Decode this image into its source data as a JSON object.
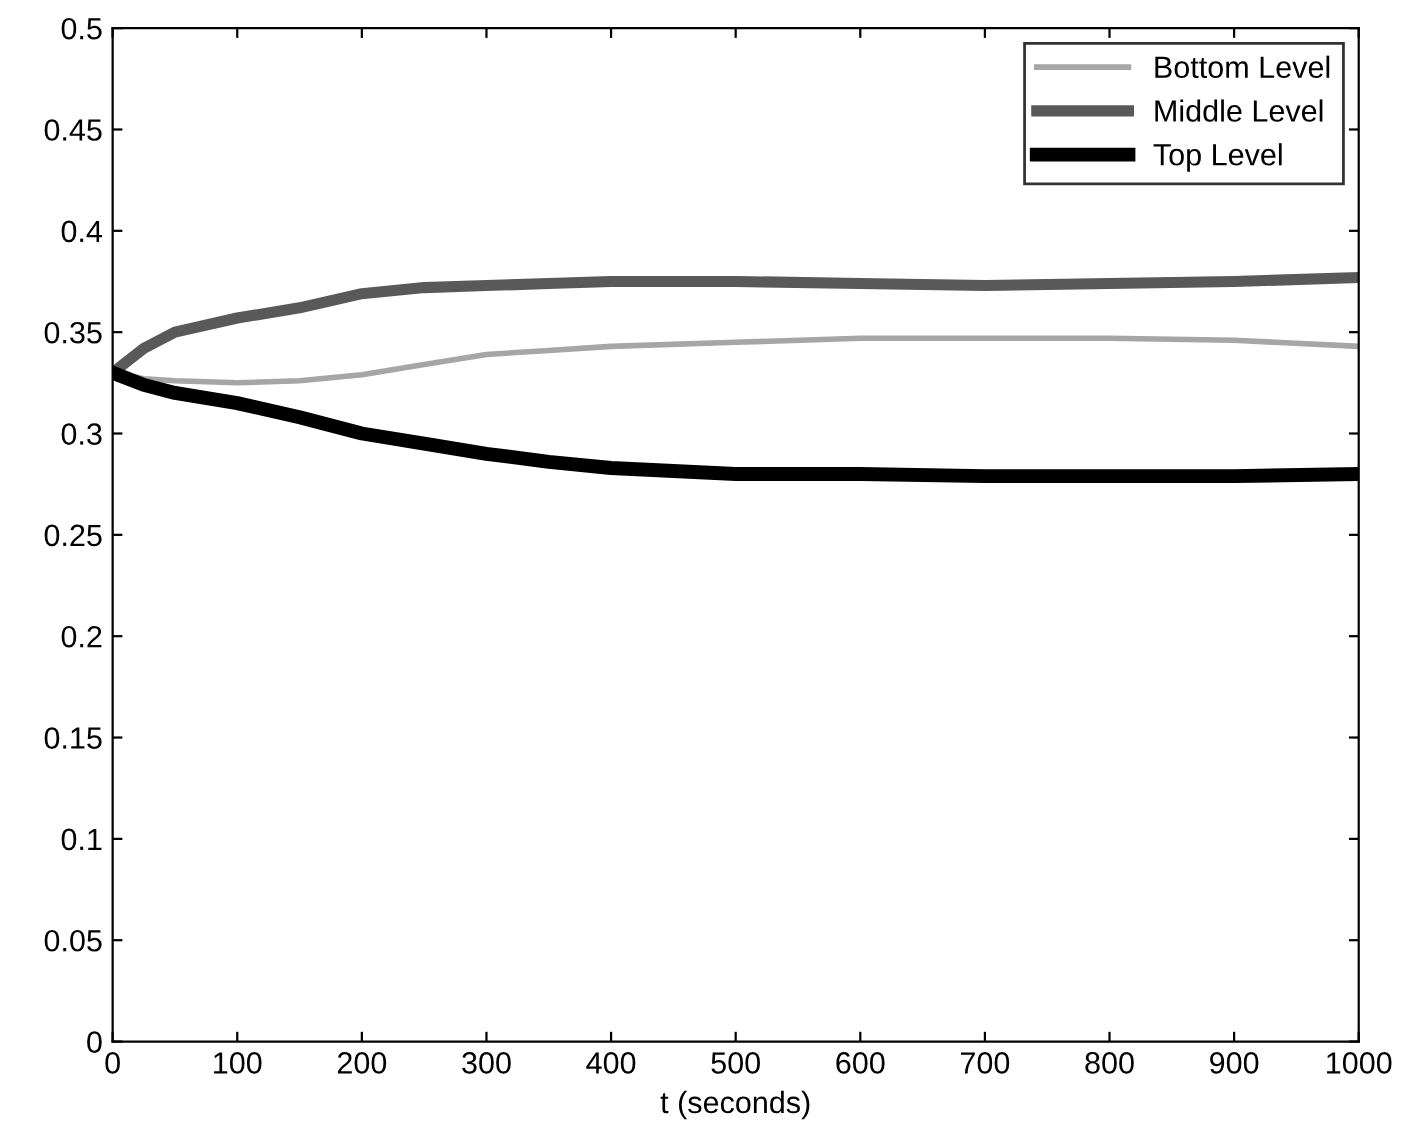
{
  "chart_data": {
    "type": "line",
    "xlabel": "t (seconds)",
    "x": [
      0,
      25,
      50,
      100,
      150,
      200,
      250,
      300,
      350,
      400,
      500,
      600,
      700,
      800,
      900,
      1000
    ],
    "series": [
      {
        "name": "Bottom Level",
        "color": "#a6a6a6",
        "values": [
          0.33,
          0.327,
          0.326,
          0.325,
          0.326,
          0.329,
          0.334,
          0.339,
          0.341,
          0.343,
          0.345,
          0.347,
          0.347,
          0.347,
          0.346,
          0.343
        ]
      },
      {
        "name": "Middle Level",
        "color": "#595959",
        "values": [
          0.33,
          0.342,
          0.35,
          0.357,
          0.362,
          0.369,
          0.372,
          0.373,
          0.374,
          0.375,
          0.375,
          0.374,
          0.373,
          0.374,
          0.375,
          0.377
        ]
      },
      {
        "name": "Top Level",
        "color": "#000000",
        "values": [
          0.33,
          0.324,
          0.32,
          0.315,
          0.308,
          0.3,
          0.295,
          0.29,
          0.286,
          0.283,
          0.28,
          0.28,
          0.279,
          0.279,
          0.279,
          0.28
        ]
      }
    ],
    "xlim": [
      0,
      1000
    ],
    "xticks": [
      0,
      100,
      200,
      300,
      400,
      500,
      600,
      700,
      800,
      900,
      1000
    ],
    "ylim": [
      0,
      0.5
    ],
    "yticks": [
      0,
      0.05,
      0.1,
      0.15,
      0.2,
      0.25,
      0.3,
      0.35,
      0.4,
      0.45,
      0.5
    ],
    "grid": false,
    "legend": "top right"
  }
}
